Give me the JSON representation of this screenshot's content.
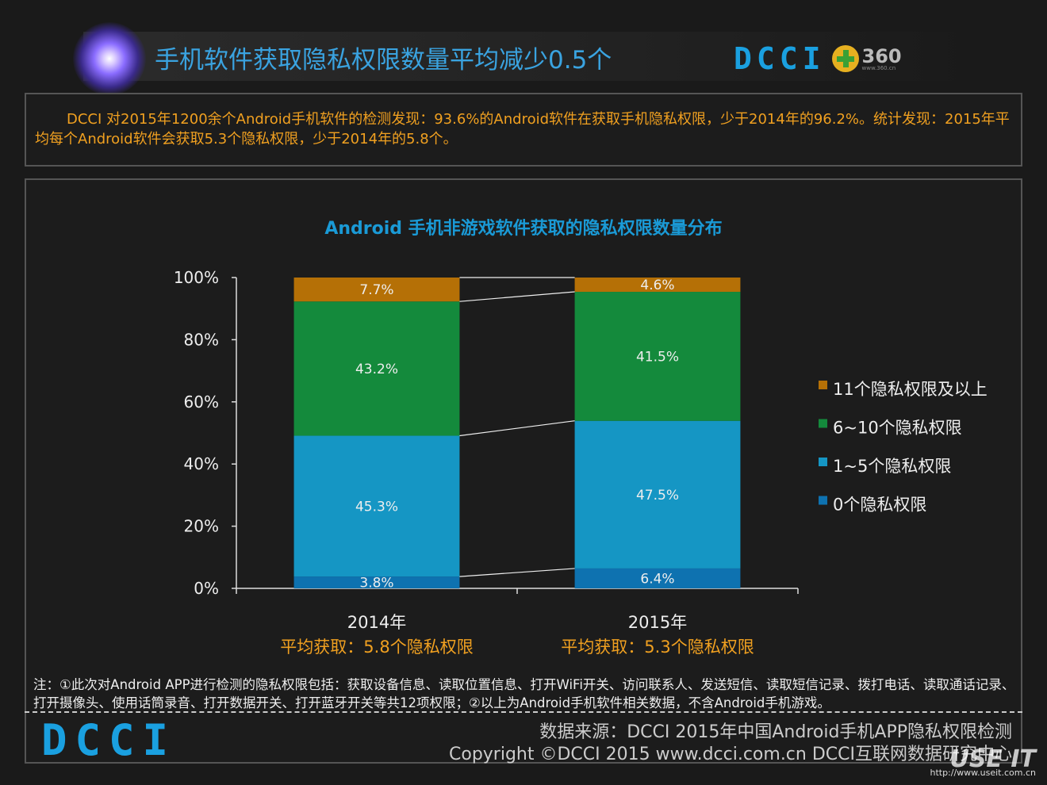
{
  "header": {
    "title": "手机软件获取隐私权限数量平均减少0.5个",
    "logo_dcci": "DCCI",
    "logo_360": "360",
    "logo_360_url": "www.360.cn"
  },
  "intro": "DCCI 对2015年1200余个Android手机软件的检测发现：93.6%的Android软件在获取手机隐私权限，少于2014年的96.2%。统计发现：2015年平均每个Android软件会获取5.3个隐私权限，少于2014年的5.8个。",
  "chart_data": {
    "type": "bar",
    "stacked": true,
    "title": "Android 手机非游戏软件获取的隐私权限数量分布",
    "categories": [
      "2014年",
      "2015年"
    ],
    "category_notes": [
      "平均获取：5.8个隐私权限",
      "平均获取：5.3个隐私权限"
    ],
    "series": [
      {
        "name": "0个隐私权限",
        "values": [
          3.8,
          6.4
        ],
        "labels": [
          "3.8%",
          "6.4%"
        ],
        "color": "#0e72b0"
      },
      {
        "name": "1~5个隐私权限",
        "values": [
          45.3,
          47.5
        ],
        "labels": [
          "45.3%",
          "47.5%"
        ],
        "color": "#1596c4"
      },
      {
        "name": "6~10个隐私权限",
        "values": [
          43.2,
          41.5
        ],
        "labels": [
          "43.2%",
          "41.5%"
        ],
        "color": "#148a3c"
      },
      {
        "name": "11个隐私权限及以上",
        "values": [
          7.7,
          4.6
        ],
        "labels": [
          "7.7%",
          "4.6%"
        ],
        "color": "#b57006"
      }
    ],
    "yticks": [
      "0%",
      "20%",
      "40%",
      "60%",
      "80%",
      "100%"
    ],
    "ylim": [
      0,
      100
    ],
    "legend_position": "right"
  },
  "note": "注：①此次对Android APP进行检测的隐私权限包括：获取设备信息、读取位置信息、打开WiFi开关、访问联系人、发送短信、读取短信记录、拨打电话、读取通话记录、打开摄像头、使用话筒录音、打开数据开关、打开蓝牙开关等共12项权限；②以上为Android手机软件相关数据，不含Android手机游戏。",
  "footer": {
    "logo": "DCCI",
    "source_line": "数据来源：DCCI 2015年中国Android手机APP隐私权限检测",
    "copyright_line": "Copyright ©DCCI 2015    www.dcci.com.cn    DCCI互联网数据研究中心",
    "watermark": "USE IT",
    "watermark_url": "http://www.useit.com.cn"
  }
}
